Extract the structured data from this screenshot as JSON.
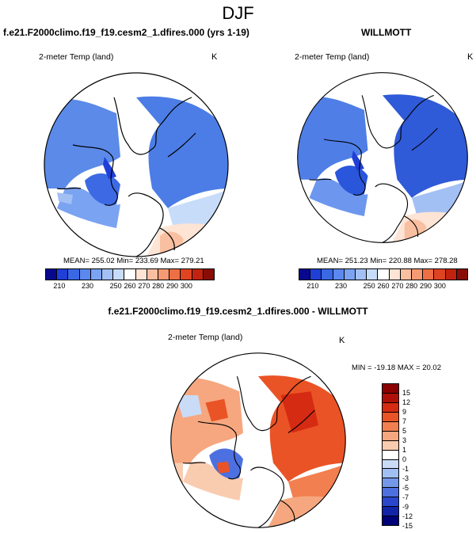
{
  "main_title": "DJF",
  "panels": [
    {
      "case": "f.e21.F2000climo.f19_f19.cesm2_1.dfires.000 (yrs 1-19)",
      "variable": "2-meter Temp (land)",
      "units": "K",
      "stats": "MEAN= 255.02  Min= 233.69  Max= 279.21"
    },
    {
      "case": "WILLMOTT",
      "variable": "2-meter Temp (land)",
      "units": "K",
      "stats": "MEAN= 251.23  Min= 220.88  Max= 278.28"
    }
  ],
  "abs_colorbar": {
    "colors": [
      "#08088f",
      "#1f3fd6",
      "#3a68e4",
      "#5a88ee",
      "#7ba3f2",
      "#a3c0f5",
      "#c7dcf9",
      "#ffffff",
      "#fde4d4",
      "#f9bfa1",
      "#f59a72",
      "#ee6f45",
      "#de4422",
      "#c2230f",
      "#8a0d05"
    ],
    "tick_labels": [
      "210",
      "230",
      "250",
      "260",
      "270",
      "280",
      "290",
      "300"
    ]
  },
  "diff_panel": {
    "case": "f.e21.F2000climo.f19_f19.cesm2_1.dfires.000 - WILLMOTT",
    "variable": "2-meter Temp (land)",
    "units": "K",
    "stats": "MIN = -19.18 MAX =  20.02"
  },
  "diff_colorbar": {
    "colors": [
      "#8b0000",
      "#b00f08",
      "#d42b12",
      "#ea5325",
      "#f27f4f",
      "#f6a77f",
      "#f9ccb0",
      "#ffffff",
      "#c9dbf7",
      "#a0bff2",
      "#7398ea",
      "#4d70e0",
      "#2a47cc",
      "#1224a8",
      "#000078"
    ],
    "tick_labels": [
      "15",
      "12",
      "9",
      "7",
      "5",
      "3",
      "1",
      "0",
      "-1",
      "-3",
      "-5",
      "-7",
      "-9",
      "-12",
      "-15"
    ]
  }
}
